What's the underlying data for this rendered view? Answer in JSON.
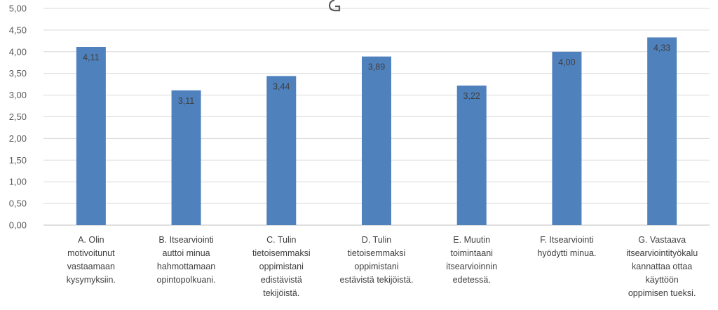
{
  "chart_data": {
    "type": "bar",
    "title": "",
    "xlabel": "",
    "ylabel": "",
    "ylim": [
      0,
      5
    ],
    "y_ticks": [
      "0,00",
      "0,50",
      "1,00",
      "1,50",
      "2,00",
      "2,50",
      "3,00",
      "3,50",
      "4,00",
      "4,50",
      "5,00"
    ],
    "grid": true,
    "colors": {
      "bar": "#4f81bd",
      "grid": "#d9d9d9"
    },
    "categories": [
      [
        "A. Olin",
        "motivoitunut",
        "vastaamaan",
        "kysymyksiin."
      ],
      [
        "B. Itsearviointi",
        "auttoi minua",
        "hahmottamaan",
        "opintopolkuani."
      ],
      [
        "C. Tulin",
        "tietoisemmaksi",
        "oppimistani",
        "edistävistä",
        "tekijöistä."
      ],
      [
        "D. Tulin",
        "tietoisemmaksi",
        "oppimistani",
        "estävistä tekijöistä."
      ],
      [
        "E. Muutin",
        "toimintaani",
        "itsearvioinnin",
        "edetessä."
      ],
      [
        "F. Itsearviointi",
        "hyödytti minua."
      ],
      [
        "G. Vastaava",
        "itsearviointityökalu",
        "kannattaa ottaa",
        "käyttöön",
        "oppimisen tueksi."
      ]
    ],
    "values": [
      4.11,
      3.11,
      3.44,
      3.89,
      3.22,
      4.0,
      4.33
    ],
    "data_labels": [
      "4,11",
      "3,11",
      "3,44",
      "3,89",
      "3,22",
      "4,00",
      "4,33"
    ]
  }
}
